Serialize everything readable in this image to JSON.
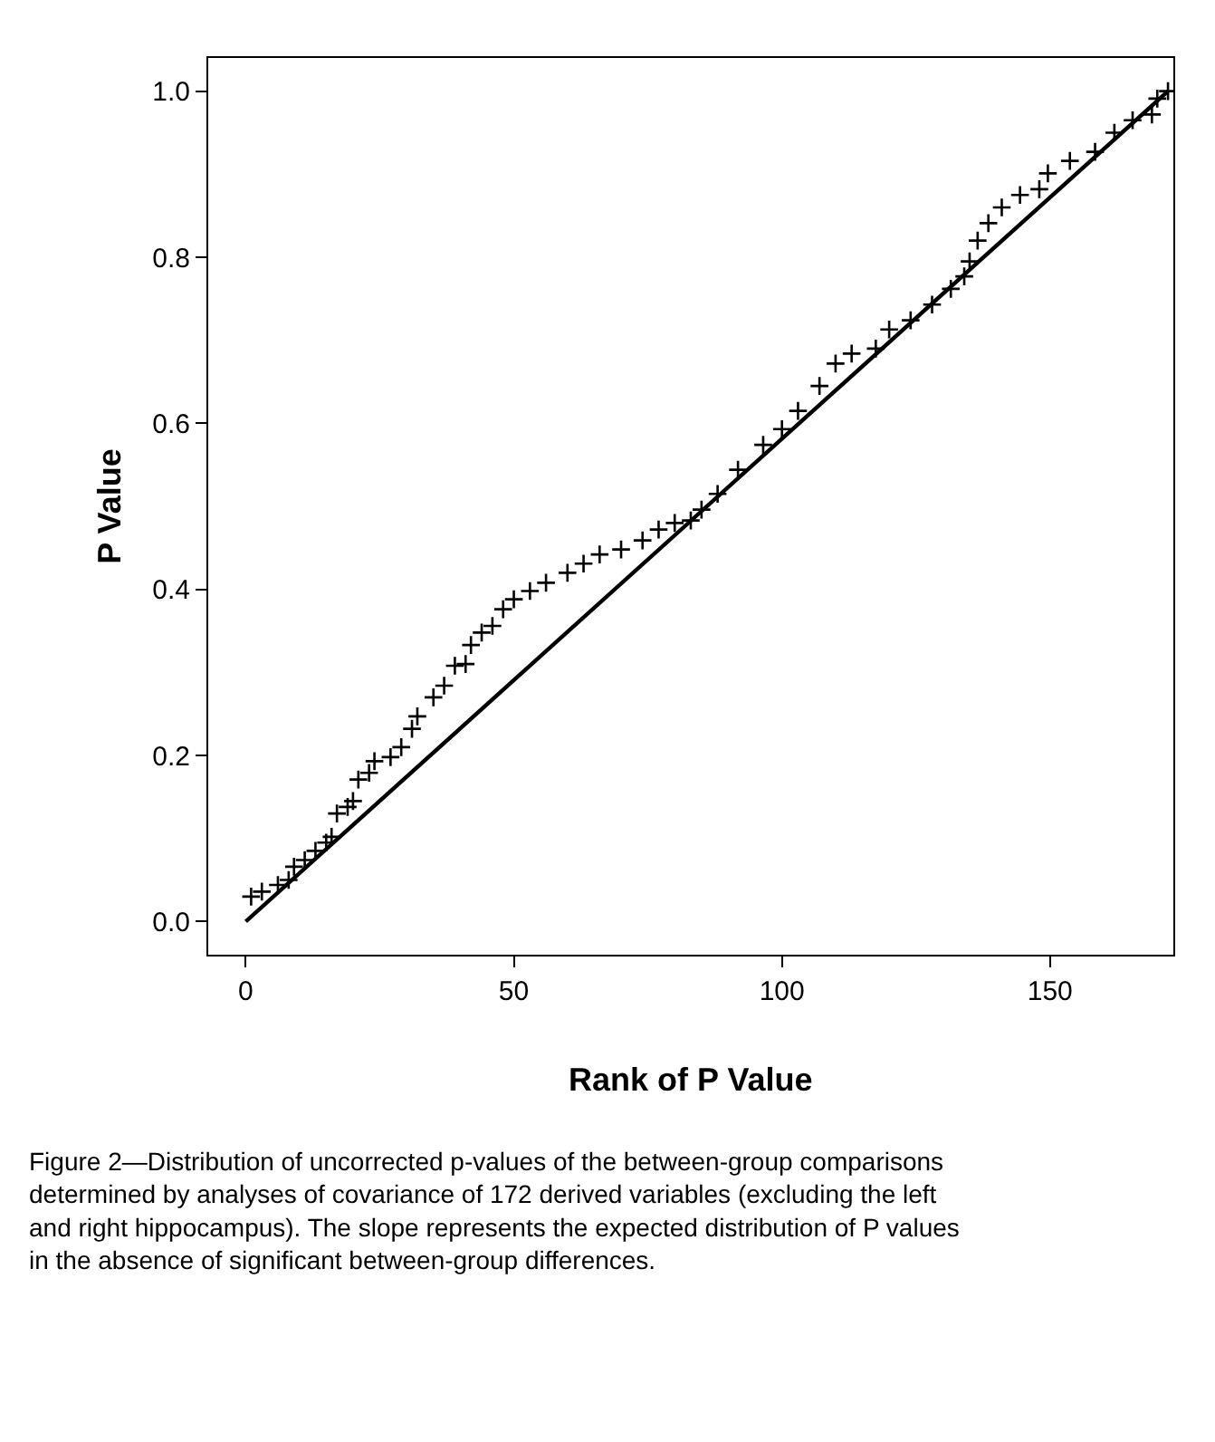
{
  "chart_data": {
    "type": "scatter",
    "xlabel": "Rank of P Value",
    "ylabel": "P Value",
    "xlim": [
      -7,
      173
    ],
    "xticks": [
      0,
      50,
      100,
      150
    ],
    "ylim": [
      -0.04,
      1.04
    ],
    "yticks": [
      {
        "value": 0,
        "label": "0.0"
      },
      0.2,
      0.4,
      0.6,
      0.8,
      {
        "value": 1,
        "label": "1.0"
      }
    ],
    "series": [
      {
        "marker": "cross",
        "color": "#000000",
        "x": [
          1,
          3,
          6,
          8,
          9,
          11,
          13,
          15,
          16,
          17,
          19,
          20,
          21,
          23,
          24,
          27,
          29,
          31,
          32,
          35,
          37,
          39,
          41,
          42,
          44,
          46,
          48,
          50,
          53,
          56,
          60,
          63,
          66,
          70,
          74,
          77,
          80,
          83,
          85,
          88,
          91.8,
          96.5,
          100,
          103,
          107,
          110,
          113,
          117.5,
          120,
          124,
          128,
          131.5,
          134,
          135,
          136.5,
          138.5,
          141,
          144.4,
          148,
          149.6,
          153.7,
          158.4,
          162,
          165.4,
          169,
          170,
          172
        ],
        "values": [
          0.03,
          0.036,
          0.044,
          0.05,
          0.066,
          0.074,
          0.085,
          0.095,
          0.102,
          0.13,
          0.138,
          0.145,
          0.171,
          0.179,
          0.193,
          0.198,
          0.21,
          0.232,
          0.247,
          0.27,
          0.284,
          0.308,
          0.31,
          0.333,
          0.348,
          0.356,
          0.376,
          0.388,
          0.398,
          0.408,
          0.42,
          0.431,
          0.442,
          0.448,
          0.459,
          0.472,
          0.48,
          0.483,
          0.496,
          0.515,
          0.544,
          0.574,
          0.593,
          0.615,
          0.645,
          0.672,
          0.684,
          0.69,
          0.713,
          0.724,
          0.743,
          0.762,
          0.777,
          0.795,
          0.82,
          0.841,
          0.86,
          0.875,
          0.882,
          0.901,
          0.916,
          0.927,
          0.95,
          0.965,
          0.972,
          0.991,
          1.0
        ]
      },
      {
        "type": "line",
        "line_style": "solid",
        "color": "#000000",
        "x": [
          0,
          172
        ],
        "values": [
          0,
          1
        ]
      }
    ],
    "annotations": [
      "Figure 2—Distribution of uncorrected p-values of the between-group comparisons determined by analyses of covariance of 172 derived variables (excluding the left and right hippocampus). The slope represents the expected distribution of P values in the absence of significant between-group differences."
    ]
  }
}
